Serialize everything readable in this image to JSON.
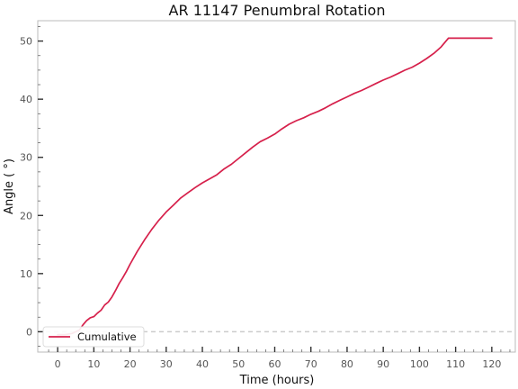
{
  "chart_data": {
    "type": "line",
    "title": "AR 11147 Penumbral Rotation",
    "xlabel": "Time (hours)",
    "ylabel": "Angle ( °)",
    "xlim": [
      -5.5,
      126.5
    ],
    "ylim": [
      -3.5,
      53.5
    ],
    "xticks": [
      0,
      10,
      20,
      30,
      40,
      50,
      60,
      70,
      80,
      90,
      100,
      110,
      120
    ],
    "yticks": [
      0,
      10,
      20,
      30,
      40,
      50
    ],
    "grid": false,
    "legend": "lower left",
    "reference_line": {
      "y": 0,
      "style": "dashed",
      "color": "#cccccc"
    },
    "series": [
      {
        "name": "Cumulative",
        "color": "#d6204b",
        "x": [
          0,
          2,
          4,
          6,
          7,
          8,
          9,
          10,
          11,
          12,
          13,
          14,
          15,
          16,
          17,
          18,
          19,
          20,
          22,
          24,
          26,
          28,
          30,
          32,
          34,
          36,
          38,
          40,
          42,
          44,
          46,
          48,
          50,
          52,
          54,
          56,
          58,
          60,
          62,
          64,
          66,
          68,
          70,
          72,
          74,
          76,
          78,
          80,
          82,
          84,
          86,
          88,
          90,
          92,
          94,
          96,
          98,
          100,
          102,
          104,
          106,
          108,
          110,
          112,
          114,
          116,
          118,
          120
        ],
        "y": [
          -0.5,
          -0.5,
          -0.3,
          0.3,
          1.2,
          1.9,
          2.4,
          2.6,
          3.2,
          3.7,
          4.6,
          5.1,
          6.0,
          7.1,
          8.3,
          9.3,
          10.4,
          11.6,
          13.8,
          15.8,
          17.6,
          19.2,
          20.6,
          21.8,
          23.0,
          23.9,
          24.8,
          25.6,
          26.3,
          27.0,
          28.0,
          28.8,
          29.8,
          30.8,
          31.8,
          32.7,
          33.3,
          34.0,
          34.9,
          35.7,
          36.3,
          36.8,
          37.4,
          37.9,
          38.5,
          39.2,
          39.8,
          40.4,
          41.0,
          41.5,
          42.1,
          42.7,
          43.3,
          43.8,
          44.4,
          45.0,
          45.5,
          46.2,
          47.0,
          47.9,
          49.0,
          50.5,
          50.5,
          50.5,
          50.5,
          50.5,
          50.5,
          50.5
        ]
      }
    ]
  }
}
